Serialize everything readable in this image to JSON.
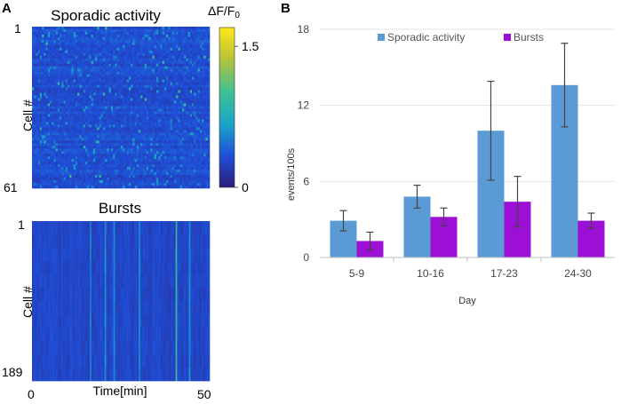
{
  "panels": {
    "a_label": "A",
    "b_label": "B"
  },
  "heatmap_top": {
    "title": "Sporadic activity",
    "ylabel": "Cell #",
    "row_first": "1",
    "row_last": "61",
    "rows": 61
  },
  "heatmap_bottom": {
    "title": "Bursts",
    "ylabel": "Cell #",
    "row_first": "1",
    "row_last": "189",
    "x_start": "0",
    "x_end": "50",
    "xlabel": "Time[min]",
    "rows": 189
  },
  "colorbar": {
    "label_main": "ΔF/F",
    "label_sub": "0",
    "ticks": [
      {
        "label": "1.5",
        "value": 1.5
      },
      {
        "label": "0",
        "value": 0
      }
    ],
    "range": [
      0,
      1.7
    ],
    "colors": [
      "#2d1e78",
      "#1f4fd8",
      "#1aa6c8",
      "#3fc290",
      "#b5c23a",
      "#ffe81a"
    ]
  },
  "chart_data": {
    "type": "bar",
    "title": "",
    "xlabel": "Day",
    "ylabel": "events/100s",
    "categories": [
      "5-9",
      "10-16",
      "17-23",
      "24-30"
    ],
    "ylim": [
      0,
      18
    ],
    "yticks": [
      "0",
      "6",
      "12",
      "18"
    ],
    "legend_position": "top",
    "series": [
      {
        "name": "Sporadic activity",
        "color": "#5b9bd5",
        "values": [
          2.9,
          4.8,
          10.0,
          13.6
        ],
        "errors": [
          0.8,
          0.9,
          3.9,
          3.3
        ]
      },
      {
        "name": "Bursts",
        "color": "#9b10d4",
        "values": [
          1.3,
          3.2,
          4.4,
          2.9
        ],
        "errors": [
          0.7,
          0.7,
          2.0,
          0.6
        ]
      }
    ]
  }
}
